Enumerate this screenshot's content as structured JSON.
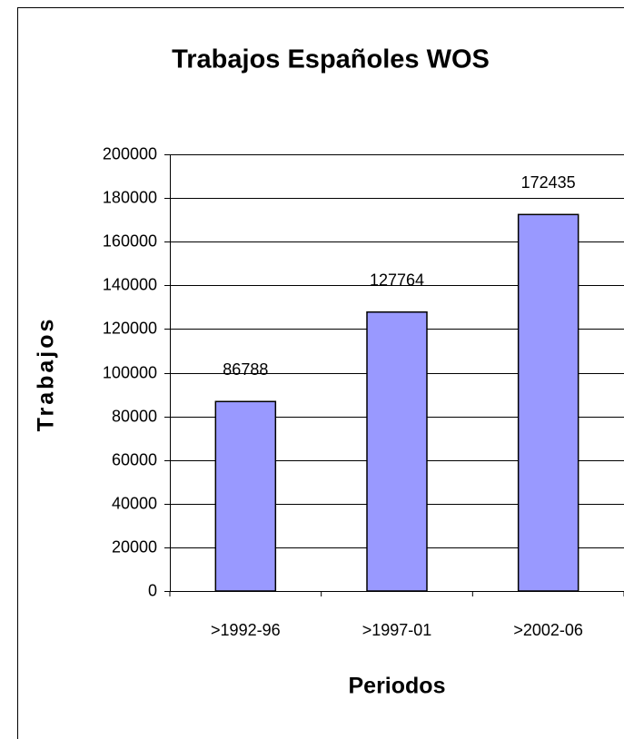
{
  "chart_data": {
    "type": "bar",
    "title": "Trabajos Españoles WOS",
    "x_label": "Periodos",
    "y_label": "Trabajos",
    "categories": [
      ">1992-96",
      ">1997-01",
      ">2002-06"
    ],
    "values": [
      86788,
      127764,
      172435
    ],
    "color": "#9999ff",
    "ylim": [
      0,
      200000
    ],
    "yticks": [
      0,
      20000,
      40000,
      60000,
      80000,
      100000,
      120000,
      140000,
      160000,
      180000,
      200000
    ],
    "grid": true
  }
}
